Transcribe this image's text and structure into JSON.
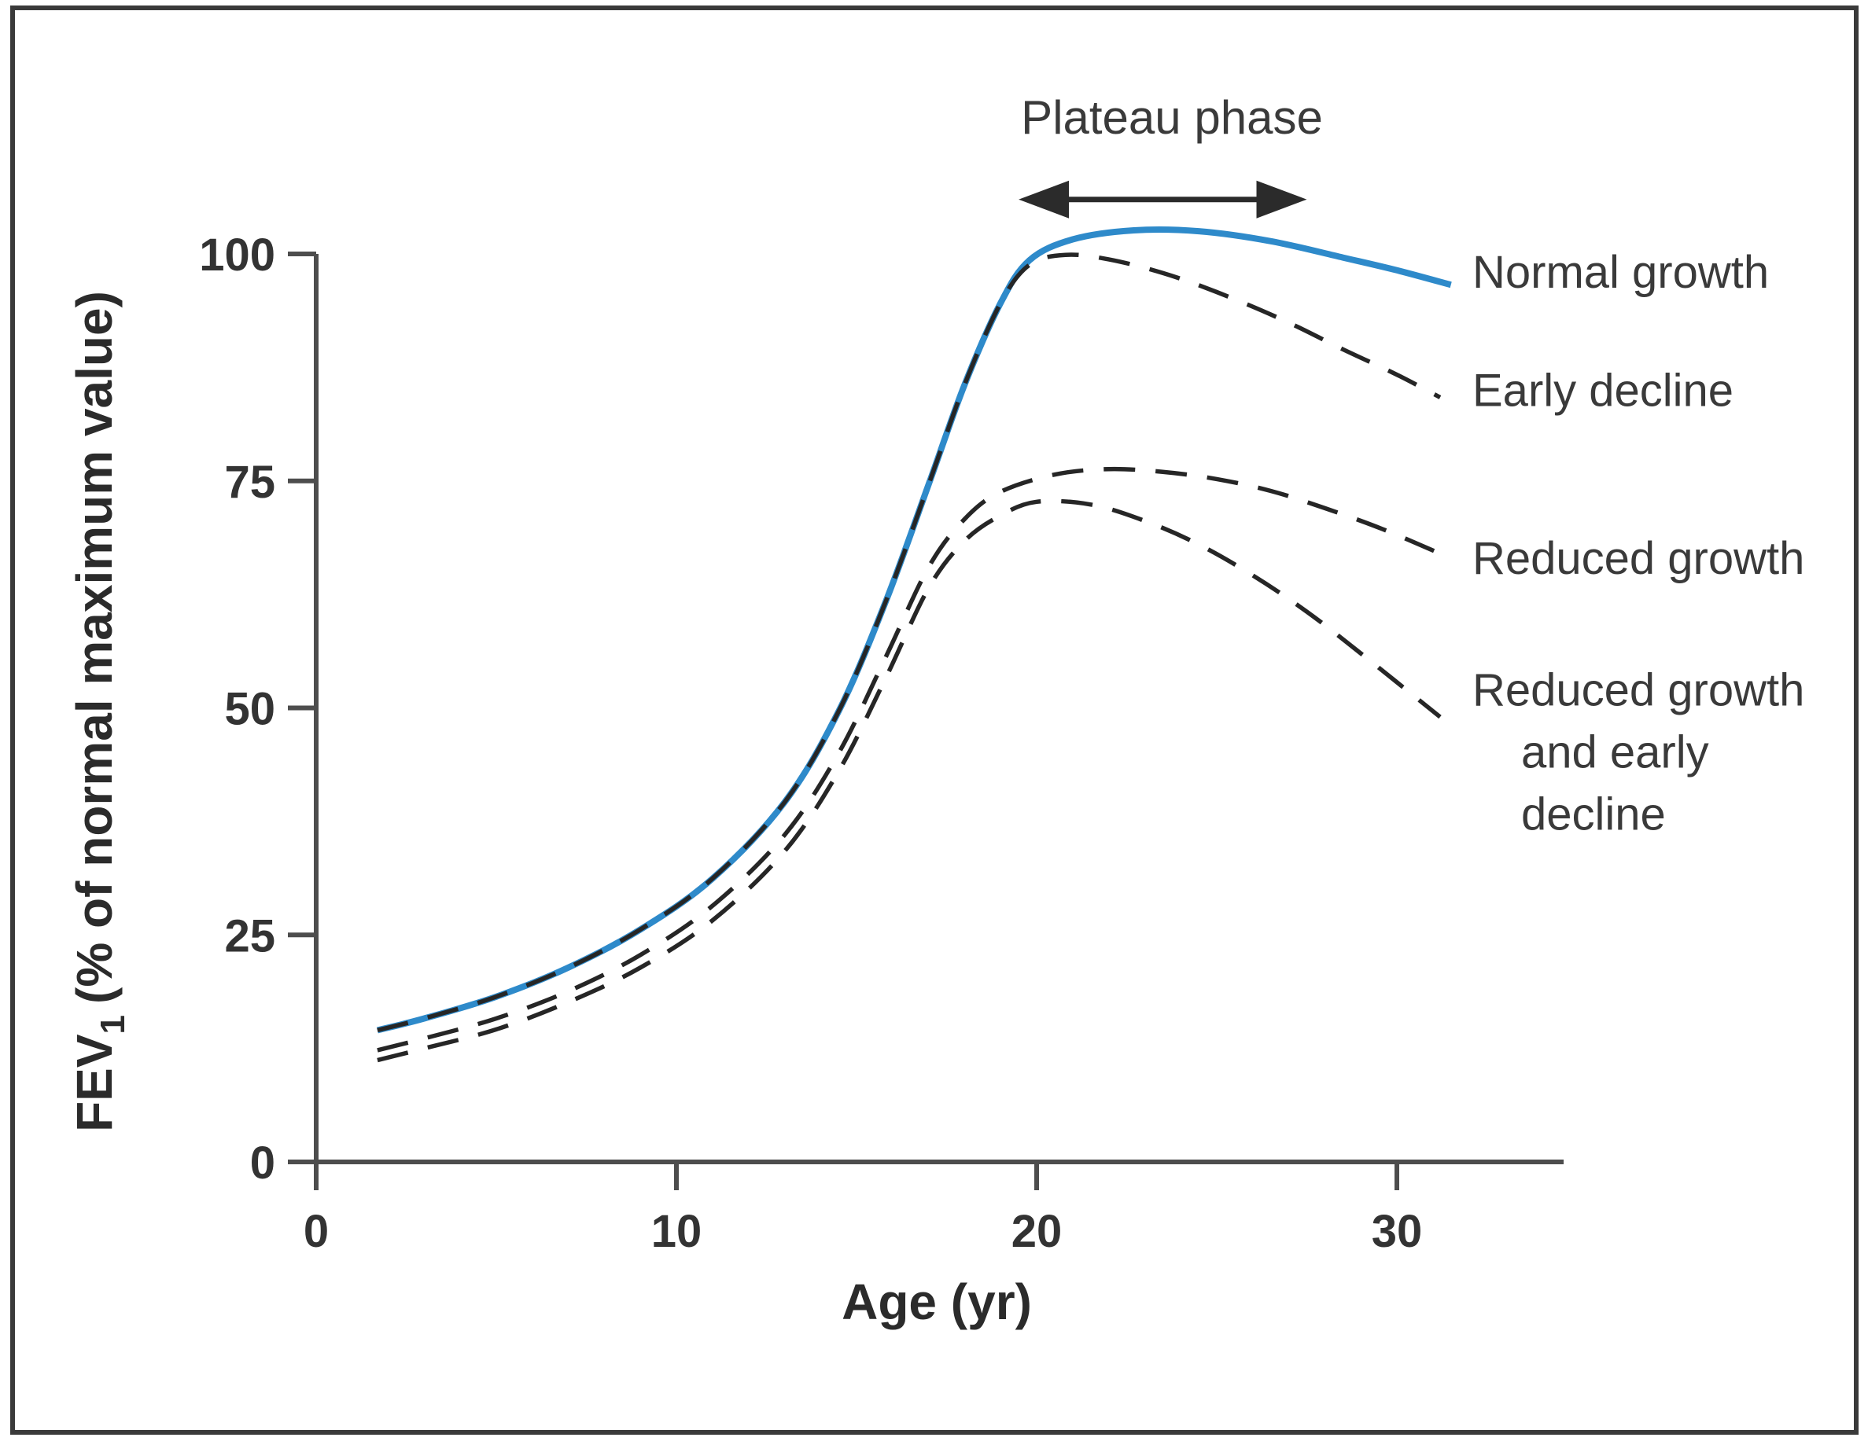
{
  "figure": {
    "plateau_label": "Plateau phase",
    "x_axis_label": "Age (yr)",
    "y_axis_label_main": "FEV",
    "y_axis_label_sub": "1",
    "y_axis_label_rest": "(% of normal maximum value)"
  },
  "chart_data": {
    "type": "line",
    "title": "",
    "xlabel": "Age (yr)",
    "ylabel": "FEV1 (% of normal maximum value)",
    "xlim": [
      0,
      34.5
    ],
    "ylim": [
      0,
      116
    ],
    "grid": false,
    "legend_position": "right-of-curve-ends",
    "x_ticks": [
      0,
      10,
      20,
      30
    ],
    "y_ticks": [
      0,
      25,
      50,
      75,
      100
    ],
    "colors": {
      "normal_growth_line": "#2e8aca",
      "dashed_line": "#262626",
      "axis": "#4d4d4d",
      "text": "#2f2f2f"
    },
    "annotation": {
      "text": "Plateau phase",
      "arrow_start_yr": 19.5,
      "arrow_end_yr": 27.5,
      "arrow_y_pct": 106,
      "text_center_yr": 23.7,
      "text_y_pct": 116
    },
    "series": [
      {
        "name": "normal-growth",
        "label": "Normal growth",
        "style": "solid",
        "color": "#2e8aca",
        "label_y_pct": 98,
        "points": [
          [
            1.7,
            14.5
          ],
          [
            3,
            15.8
          ],
          [
            5,
            18.2
          ],
          [
            7,
            21.4
          ],
          [
            9,
            25.6
          ],
          [
            11,
            31.2
          ],
          [
            13,
            39.6
          ],
          [
            14.5,
            49.6
          ],
          [
            15.8,
            61.6
          ],
          [
            17,
            74.6
          ],
          [
            18,
            85.6
          ],
          [
            19,
            94.6
          ],
          [
            19.8,
            99.3
          ],
          [
            21,
            101.6
          ],
          [
            22.7,
            102.6
          ],
          [
            24.5,
            102.5
          ],
          [
            26.5,
            101.4
          ],
          [
            28.5,
            99.6
          ],
          [
            30,
            98.2
          ],
          [
            31.5,
            96.6
          ]
        ]
      },
      {
        "name": "early-decline",
        "label": "Early decline",
        "style": "dashed",
        "color": "#262626",
        "label_y_pct": 85,
        "points": [
          [
            1.7,
            14.5
          ],
          [
            3,
            15.8
          ],
          [
            5,
            18.2
          ],
          [
            7,
            21.4
          ],
          [
            9,
            25.6
          ],
          [
            11,
            31.2
          ],
          [
            13,
            39.6
          ],
          [
            14.5,
            49.6
          ],
          [
            15.8,
            61.6
          ],
          [
            17,
            74.6
          ],
          [
            18,
            85.6
          ],
          [
            19,
            94.6
          ],
          [
            19.8,
            98.8
          ],
          [
            20.8,
            99.9
          ],
          [
            22,
            99.4
          ],
          [
            23.5,
            97.9
          ],
          [
            25,
            95.8
          ],
          [
            26.8,
            92.8
          ],
          [
            28.5,
            89.5
          ],
          [
            30,
            86.7
          ],
          [
            31.2,
            84.2
          ]
        ]
      },
      {
        "name": "reduced-growth",
        "label": "Reduced growth",
        "style": "dashed",
        "color": "#262626",
        "label_y_pct": 66.5,
        "points": [
          [
            1.7,
            12.3
          ],
          [
            3,
            13.6
          ],
          [
            5,
            15.8
          ],
          [
            7,
            18.8
          ],
          [
            9,
            22.8
          ],
          [
            11,
            28.2
          ],
          [
            13,
            36
          ],
          [
            14.5,
            45
          ],
          [
            15.8,
            55.5
          ],
          [
            17,
            65.5
          ],
          [
            18,
            70.8
          ],
          [
            19,
            73.8
          ],
          [
            20.5,
            75.7
          ],
          [
            22,
            76.3
          ],
          [
            23.5,
            76
          ],
          [
            25,
            75.2
          ],
          [
            26.5,
            73.9
          ],
          [
            28,
            72
          ],
          [
            29.6,
            69.7
          ],
          [
            31.2,
            67
          ]
        ]
      },
      {
        "name": "reduced-growth-early-decline",
        "label": "Reduced growth and early decline",
        "label_lines": [
          "Reduced growth",
          "and early",
          "decline"
        ],
        "style": "dashed",
        "color": "#262626",
        "label_y_pct": 52,
        "points": [
          [
            1.7,
            11.2
          ],
          [
            3,
            12.5
          ],
          [
            5,
            14.6
          ],
          [
            7,
            17.6
          ],
          [
            9,
            21.4
          ],
          [
            11,
            26.6
          ],
          [
            13,
            34.2
          ],
          [
            14.5,
            43
          ],
          [
            15.8,
            53.2
          ],
          [
            17,
            63.2
          ],
          [
            18,
            68.4
          ],
          [
            19,
            71.2
          ],
          [
            20,
            72.7
          ],
          [
            21.5,
            72.4
          ],
          [
            23,
            70.6
          ],
          [
            24.5,
            68
          ],
          [
            26,
            64.6
          ],
          [
            27.5,
            60.6
          ],
          [
            29,
            56
          ],
          [
            31.2,
            49
          ]
        ]
      }
    ]
  }
}
